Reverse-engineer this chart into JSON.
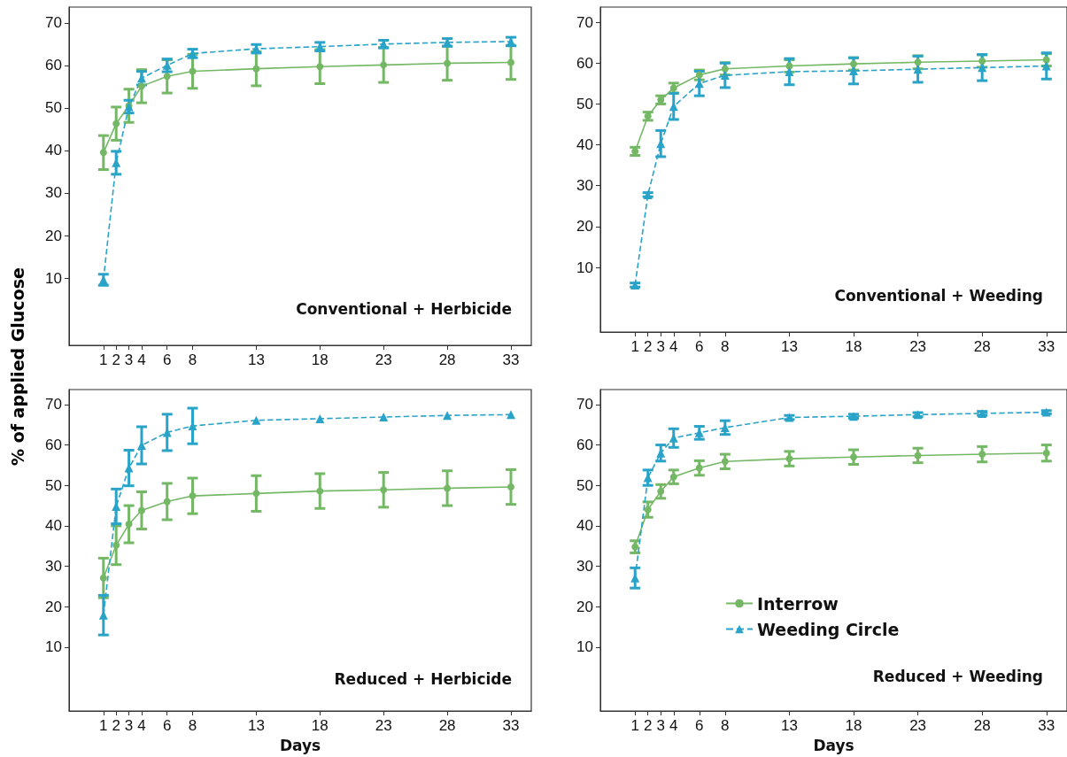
{
  "chart_data": [
    {
      "type": "line",
      "title": "Conventional + Herbicide",
      "ylabel": "% of applied Glucose",
      "x": [
        1,
        2,
        3,
        4,
        6,
        8,
        13,
        18,
        23,
        28,
        33
      ],
      "xlim": [
        -1.7,
        34.6
      ],
      "xticks": [
        1,
        2,
        3,
        4,
        6,
        8,
        13,
        18,
        23,
        28,
        33
      ],
      "ylim": [
        -5.8,
        73.7
      ],
      "yticks": [
        10,
        20,
        30,
        40,
        50,
        60,
        70
      ],
      "grid": false,
      "legend": false,
      "series": [
        {
          "color": "#74b865",
          "marker": "circle",
          "line_style": "solid",
          "values": [
            39.5,
            46.3,
            50.5,
            55.1,
            57.4,
            58.6,
            59.2,
            59.7,
            60.1,
            60.5,
            60.7
          ],
          "errors": [
            4,
            3.9,
            3.9,
            3.9,
            3.9,
            4,
            4,
            4,
            4.1,
            4,
            4
          ]
        },
        {
          "color": "#2aa3c9",
          "marker": "triangle",
          "line_style": "dashed",
          "values": [
            9.6,
            37.1,
            50.3,
            57,
            60,
            62.8,
            63.9,
            64.4,
            65,
            65.4,
            65.6
          ],
          "errors": [
            1.3,
            2.7,
            1.5,
            1.6,
            1.5,
            1,
            1,
            1,
            0.9,
            0.9,
            1
          ]
        }
      ]
    },
    {
      "type": "line",
      "title": "Conventional + Weeding",
      "x": [
        1,
        2,
        3,
        4,
        6,
        8,
        13,
        18,
        23,
        28,
        33
      ],
      "xlim": [
        -1.7,
        34.6
      ],
      "xticks": [
        1,
        2,
        3,
        4,
        6,
        8,
        13,
        18,
        23,
        28,
        33
      ],
      "ylim": [
        -5.8,
        73.7
      ],
      "yticks": [
        10,
        20,
        30,
        40,
        50,
        60,
        70
      ],
      "grid": false,
      "legend": false,
      "series": [
        {
          "color": "#74b865",
          "marker": "circle",
          "line_style": "solid",
          "values": [
            38.4,
            47,
            51,
            53.9,
            57.1,
            58.6,
            59.3,
            59.8,
            60.2,
            60.5,
            60.8
          ],
          "errors": [
            1,
            1,
            1,
            1.2,
            1.2,
            1.5,
            1.5,
            1.5,
            1.6,
            1.5,
            1.5
          ]
        },
        {
          "color": "#2aa3c9",
          "marker": "triangle",
          "line_style": "dashed",
          "values": [
            5.7,
            27.8,
            40.3,
            49.4,
            55,
            57,
            57.9,
            58.1,
            58.5,
            58.9,
            59.3
          ],
          "errors": [
            0.5,
            0.5,
            3.2,
            3.2,
            3,
            3,
            3.2,
            3.2,
            3.2,
            3.2,
            3.2
          ]
        }
      ]
    },
    {
      "type": "line",
      "title": "Reduced + Herbicide",
      "xlabel": "Days",
      "x": [
        1,
        2,
        3,
        4,
        6,
        8,
        13,
        18,
        23,
        28,
        33
      ],
      "xlim": [
        -1.7,
        34.6
      ],
      "xticks": [
        1,
        2,
        3,
        4,
        6,
        8,
        13,
        18,
        23,
        28,
        33
      ],
      "ylim": [
        -5.8,
        73.7
      ],
      "yticks": [
        10,
        20,
        30,
        40,
        50,
        60,
        70
      ],
      "grid": false,
      "legend": false,
      "series": [
        {
          "color": "#74b865",
          "marker": "circle",
          "line_style": "solid",
          "values": [
            27.1,
            35.2,
            40.4,
            43.8,
            46,
            47.4,
            48,
            48.6,
            48.9,
            49.3,
            49.6
          ],
          "errors": [
            4.9,
            4.8,
            4.6,
            4.6,
            4.5,
            4.4,
            4.4,
            4.3,
            4.3,
            4.3,
            4.3
          ]
        },
        {
          "color": "#2aa3c9",
          "marker": "triangle",
          "line_style": "dashed",
          "values": [
            17.9,
            44.8,
            54.3,
            59.9,
            63.1,
            64.7,
            66.1,
            66.5,
            66.9,
            67.3,
            67.5
          ],
          "errors": [
            4.9,
            4.3,
            4.4,
            4.6,
            4.5,
            4.4,
            null,
            null,
            null,
            null,
            null
          ]
        }
      ]
    },
    {
      "type": "line",
      "title": "Reduced + Weeding",
      "xlabel": "Days",
      "x": [
        1,
        2,
        3,
        4,
        6,
        8,
        13,
        18,
        23,
        28,
        33
      ],
      "xlim": [
        -1.7,
        34.6
      ],
      "xticks": [
        1,
        2,
        3,
        4,
        6,
        8,
        13,
        18,
        23,
        28,
        33
      ],
      "ylim": [
        -5.8,
        73.7
      ],
      "yticks": [
        10,
        20,
        30,
        40,
        50,
        60,
        70
      ],
      "grid": false,
      "legend": "bottom",
      "series": [
        {
          "name": "Interrow",
          "color": "#74b865",
          "marker": "circle",
          "line_style": "solid",
          "values": [
            34.8,
            44,
            48.5,
            52.1,
            54.3,
            55.9,
            56.6,
            57,
            57.4,
            57.7,
            58
          ],
          "errors": [
            1.5,
            1.9,
            1.7,
            1.7,
            1.8,
            1.8,
            1.8,
            1.8,
            1.8,
            1.9,
            2
          ]
        },
        {
          "name": "Weeding Circle",
          "color": "#2aa3c9",
          "marker": "triangle",
          "line_style": "dashed",
          "values": [
            27.1,
            51.9,
            58,
            61.7,
            63,
            64.3,
            66.8,
            67.1,
            67.5,
            67.8,
            68.1
          ],
          "errors": [
            2.5,
            1.9,
            2,
            2.3,
            1.6,
            1.7,
            0.5,
            0.5,
            0.5,
            0.5,
            0.4
          ]
        }
      ]
    }
  ]
}
